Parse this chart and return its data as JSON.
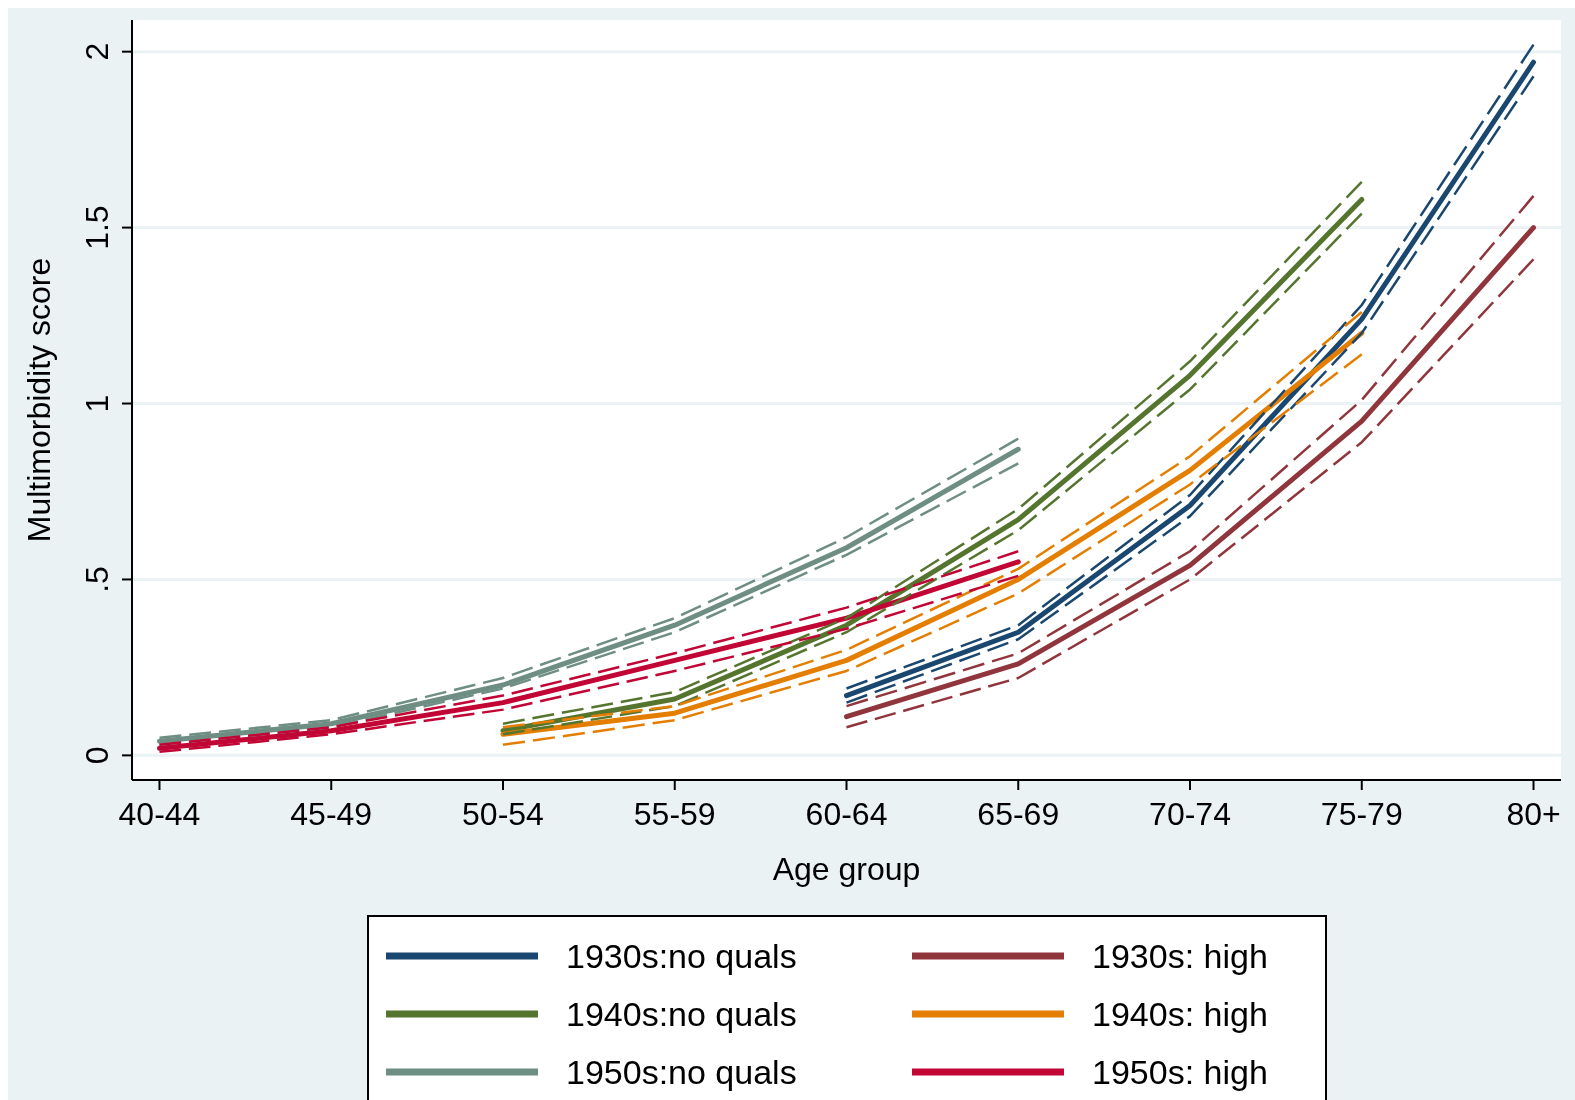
{
  "chart_data": {
    "type": "line",
    "xlabel": "Age group",
    "ylabel": "Multimorbidity score",
    "categories": [
      "40-44",
      "45-49",
      "50-54",
      "55-59",
      "60-64",
      "65-69",
      "70-74",
      "75-79",
      "80+"
    ],
    "ylim": [
      -0.07,
      2.09
    ],
    "yticks": [
      0,
      {
        "value": 0.5,
        "label": ".5"
      },
      1,
      1.5,
      2
    ],
    "grid": "y",
    "legend": "bottom",
    "marker": "none",
    "line_style": "solid",
    "series": [
      {
        "name": "1930s:no quals",
        "color": "#1a476f",
        "values": [
          null,
          null,
          null,
          null,
          0.17,
          0.35,
          0.71,
          1.24,
          1.97
        ]
      },
      {
        "name": "1930s: high",
        "color": "#90353b",
        "values": [
          null,
          null,
          null,
          null,
          0.11,
          0.26,
          0.54,
          0.95,
          1.5
        ]
      },
      {
        "name": "1940s:no quals",
        "color": "#55752f",
        "values": [
          null,
          null,
          0.07,
          0.16,
          0.37,
          0.67,
          1.08,
          1.58,
          null
        ]
      },
      {
        "name": "1940s: high",
        "color": "#e37e00",
        "values": [
          null,
          null,
          0.06,
          0.12,
          0.27,
          0.5,
          0.81,
          1.2,
          null
        ]
      },
      {
        "name": "1950s:no quals",
        "color": "#6e8e84",
        "values": [
          0.04,
          0.09,
          0.2,
          0.37,
          0.59,
          0.87,
          null,
          null,
          null
        ]
      },
      {
        "name": "1950s: high",
        "color": "#c10534",
        "values": [
          0.02,
          0.07,
          0.15,
          0.27,
          0.39,
          0.55,
          null,
          null,
          null
        ]
      },
      {
        "color": "#1a476f",
        "line_style": "dashed",
        "values": [
          null,
          null,
          null,
          null,
          0.15,
          0.33,
          0.68,
          1.2,
          1.93
        ]
      },
      {
        "color": "#1a476f",
        "line_style": "dashed",
        "values": [
          null,
          null,
          null,
          null,
          0.19,
          0.37,
          0.74,
          1.28,
          2.02
        ]
      },
      {
        "color": "#90353b",
        "line_style": "dashed",
        "values": [
          null,
          null,
          null,
          null,
          0.08,
          0.22,
          0.5,
          0.89,
          1.41
        ]
      },
      {
        "color": "#90353b",
        "line_style": "dashed",
        "values": [
          null,
          null,
          null,
          null,
          0.14,
          0.29,
          0.58,
          1.01,
          1.59
        ]
      },
      {
        "color": "#55752f",
        "line_style": "dashed",
        "values": [
          null,
          null,
          0.06,
          0.14,
          0.35,
          0.64,
          1.04,
          1.54,
          null
        ]
      },
      {
        "color": "#55752f",
        "line_style": "dashed",
        "values": [
          null,
          null,
          0.09,
          0.18,
          0.39,
          0.7,
          1.12,
          1.63,
          null
        ]
      },
      {
        "color": "#e37e00",
        "line_style": "dashed",
        "values": [
          null,
          null,
          0.03,
          0.1,
          0.24,
          0.46,
          0.77,
          1.14,
          null
        ]
      },
      {
        "color": "#e37e00",
        "line_style": "dashed",
        "values": [
          null,
          null,
          0.08,
          0.14,
          0.3,
          0.53,
          0.85,
          1.26,
          null
        ]
      },
      {
        "color": "#6e8e84",
        "line_style": "dashed",
        "values": [
          0.03,
          0.08,
          0.19,
          0.35,
          0.57,
          0.83,
          null,
          null,
          null
        ]
      },
      {
        "color": "#6e8e84",
        "line_style": "dashed",
        "values": [
          0.05,
          0.1,
          0.22,
          0.39,
          0.62,
          0.9,
          null,
          null,
          null
        ]
      },
      {
        "color": "#c10534",
        "line_style": "dashed",
        "values": [
          0.01,
          0.06,
          0.13,
          0.24,
          0.36,
          0.51,
          null,
          null,
          null
        ]
      },
      {
        "color": "#c10534",
        "line_style": "dashed",
        "values": [
          0.03,
          0.08,
          0.17,
          0.29,
          0.42,
          0.58,
          null,
          null,
          null
        ]
      }
    ]
  }
}
